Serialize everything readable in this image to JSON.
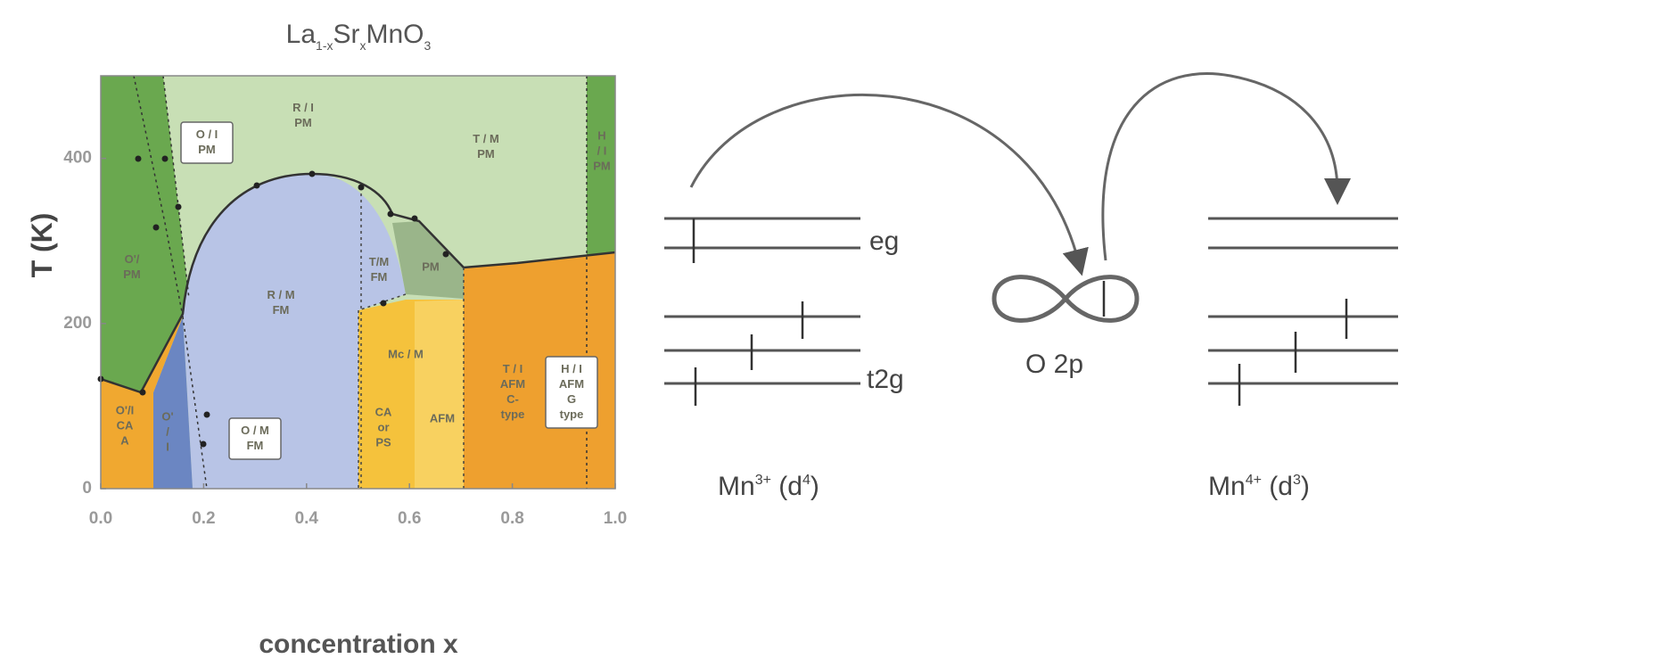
{
  "phase_diagram": {
    "title": {
      "parts": [
        "La",
        "1-x",
        "Sr",
        "x",
        "MnO",
        "3"
      ]
    },
    "x_label": "concentration x",
    "y_label": "T (K)",
    "xlim": [
      0,
      1
    ],
    "ylim": [
      0,
      500
    ],
    "xticks": [
      {
        "value": 0,
        "label": "0.0"
      },
      {
        "value": 0.2,
        "label": "0.2"
      },
      {
        "value": 0.4,
        "label": "0.4"
      },
      {
        "value": 0.6,
        "label": "0.6"
      },
      {
        "value": 0.8,
        "label": "0.8"
      },
      {
        "value": 1,
        "label": "1.0"
      }
    ],
    "yticks": [
      0,
      200,
      400
    ],
    "regions": [
      {
        "lines": [
          "R / I",
          "PM"
        ],
        "boxed": false
      },
      {
        "lines": [
          "T / M",
          "PM"
        ],
        "boxed": false
      },
      {
        "lines": [
          "O'/",
          "PM"
        ],
        "boxed": false
      },
      {
        "lines": [
          "O / I",
          "PM"
        ],
        "boxed": true
      },
      {
        "lines": [
          "R / M",
          "FM"
        ],
        "boxed": false
      },
      {
        "lines": [
          "T/M",
          "FM"
        ],
        "boxed": false
      },
      {
        "lines": [
          "PM"
        ],
        "boxed": false
      },
      {
        "lines": [
          "O'/I",
          "CA",
          "A"
        ],
        "boxed": false
      },
      {
        "lines": [
          "O'",
          "/",
          "I"
        ],
        "boxed": false
      },
      {
        "lines": [
          "O / M",
          "FM"
        ],
        "boxed": true
      },
      {
        "lines": [
          "Mc / M"
        ],
        "boxed": false
      },
      {
        "lines": [
          "CA",
          "or",
          "PS"
        ],
        "boxed": false
      },
      {
        "lines": [
          "AFM"
        ],
        "boxed": false
      },
      {
        "lines": [
          "T / I",
          "AFM",
          "C-",
          "type"
        ],
        "boxed": false
      },
      {
        "lines": [
          "H / I",
          "AFM",
          "G",
          "type"
        ],
        "boxed": true
      },
      {
        "lines": [
          "H",
          "/ I",
          "PM"
        ],
        "boxed": false
      }
    ]
  },
  "energy_diagram": {
    "eg_label": "eg",
    "t2g_label": "t2g",
    "orbital_label": "O 2p",
    "left_ion": {
      "parts": [
        "Mn",
        "3+",
        " (d",
        "4",
        ")"
      ]
    },
    "right_ion": {
      "parts": [
        "Mn",
        "4+",
        " (d",
        "3",
        ")"
      ]
    }
  }
}
